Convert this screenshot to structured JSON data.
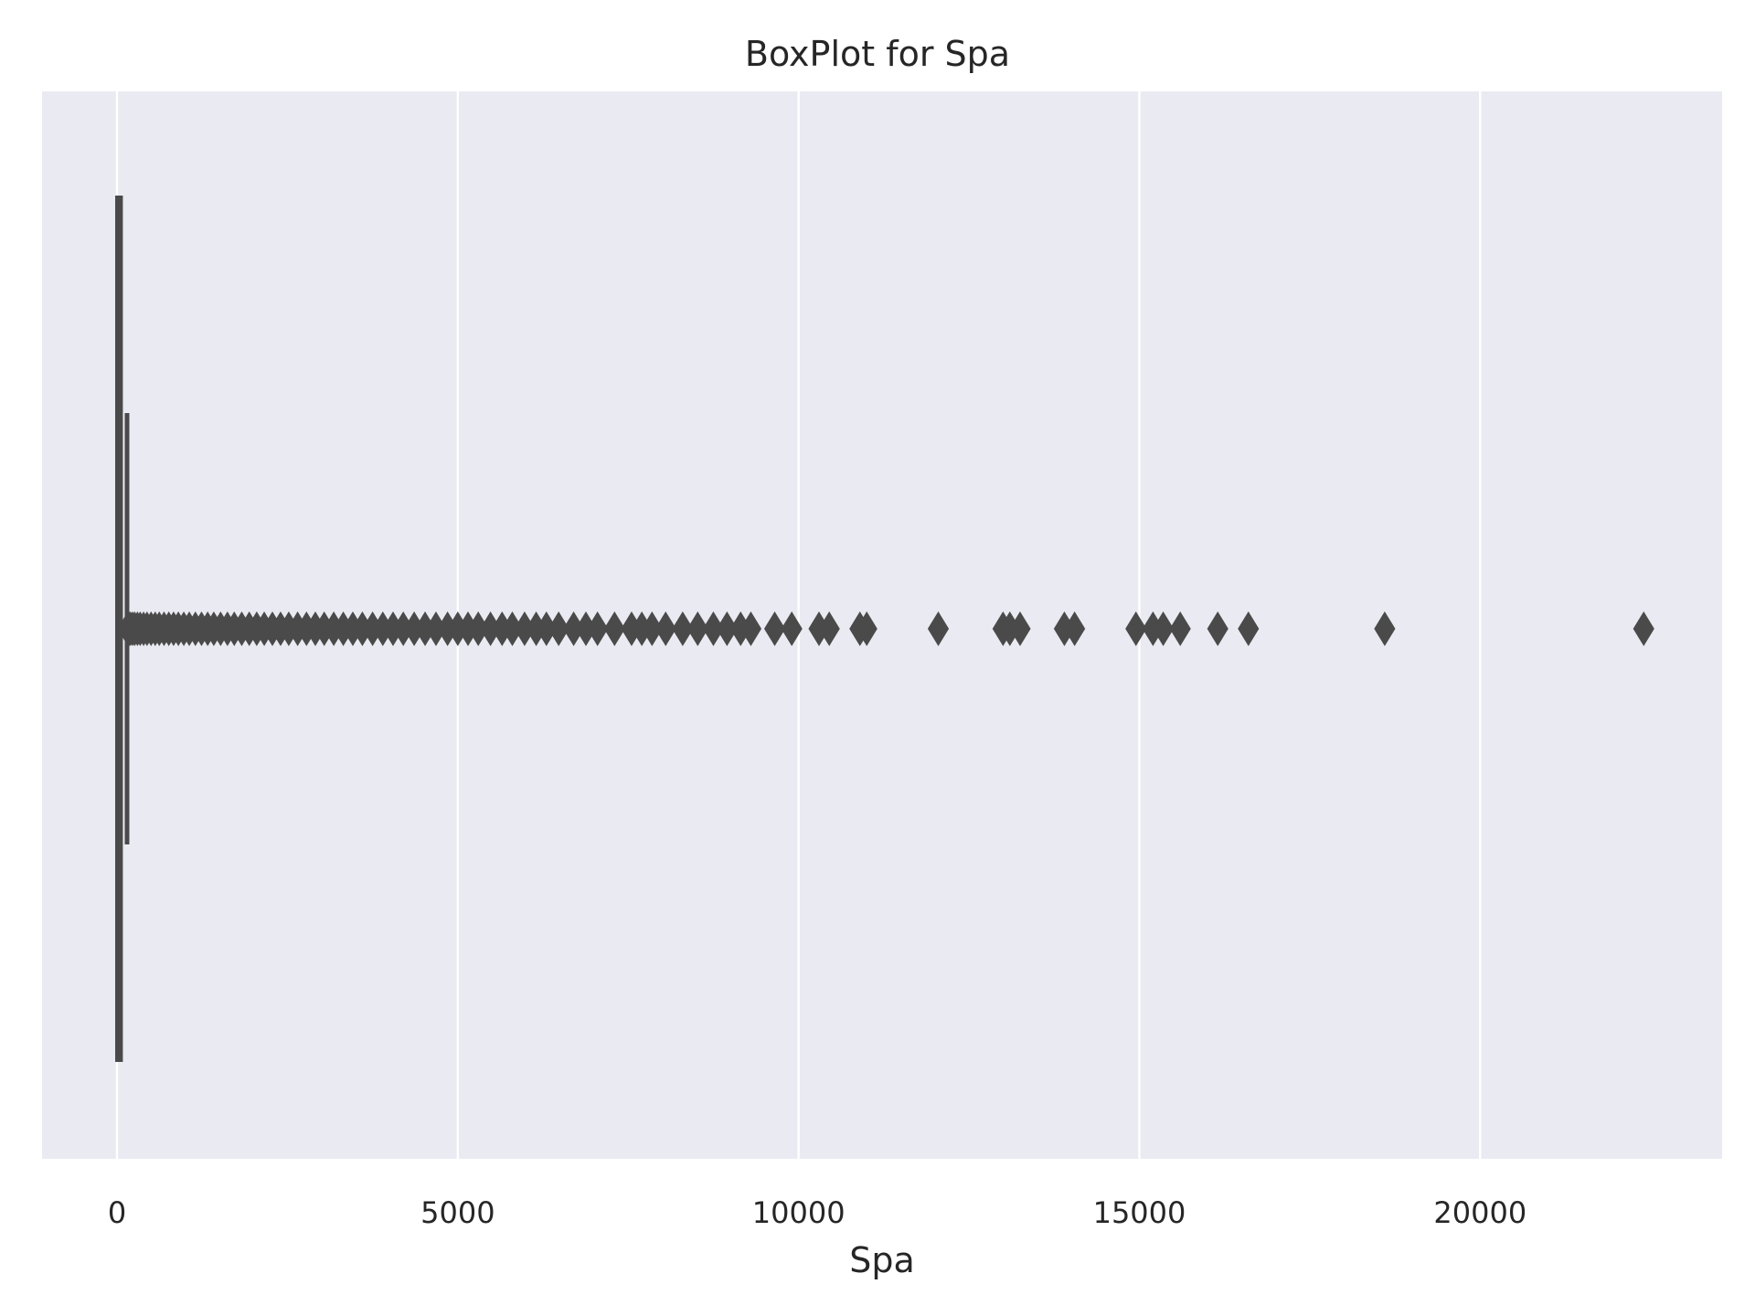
{
  "chart_data": {
    "type": "box",
    "orientation": "horizontal",
    "title": "BoxPlot for Spa",
    "xlabel": "Spa",
    "ylabel": "",
    "xlim": [
      -1100,
      23550
    ],
    "xticks": [
      0,
      5000,
      10000,
      15000,
      20000
    ],
    "xtick_labels": [
      "0",
      "5000",
      "10000",
      "15000",
      "20000"
    ],
    "grid": true,
    "colors": {
      "background": "#eaeaf2",
      "grid": "#ffffff",
      "marks": "#4a4a4a",
      "box_fill": "#4c72b0"
    },
    "box": {
      "q1": 0,
      "median": 0,
      "q3": 59,
      "whisker_low": 0,
      "whisker_high": 147
    },
    "outliers": [
      160,
      180,
      200,
      230,
      260,
      300,
      340,
      390,
      440,
      500,
      560,
      620,
      690,
      760,
      830,
      900,
      980,
      1060,
      1150,
      1240,
      1330,
      1420,
      1520,
      1620,
      1720,
      1830,
      1940,
      2050,
      2160,
      2280,
      2400,
      2520,
      2650,
      2780,
      2910,
      3040,
      3180,
      3320,
      3460,
      3600,
      3750,
      3900,
      4050,
      4200,
      4360,
      4520,
      4680,
      4850,
      5000,
      5150,
      5300,
      5480,
      5650,
      5800,
      5980,
      6150,
      6300,
      6480,
      6700,
      6880,
      7050,
      7300,
      7550,
      7700,
      7850,
      8050,
      8300,
      8520,
      8750,
      8950,
      9150,
      9300,
      9650,
      9900,
      10300,
      10450,
      10900,
      11000,
      12050,
      13000,
      13100,
      13250,
      13900,
      14050,
      14950,
      15200,
      15350,
      15600,
      16150,
      16600,
      18600,
      22400
    ]
  }
}
